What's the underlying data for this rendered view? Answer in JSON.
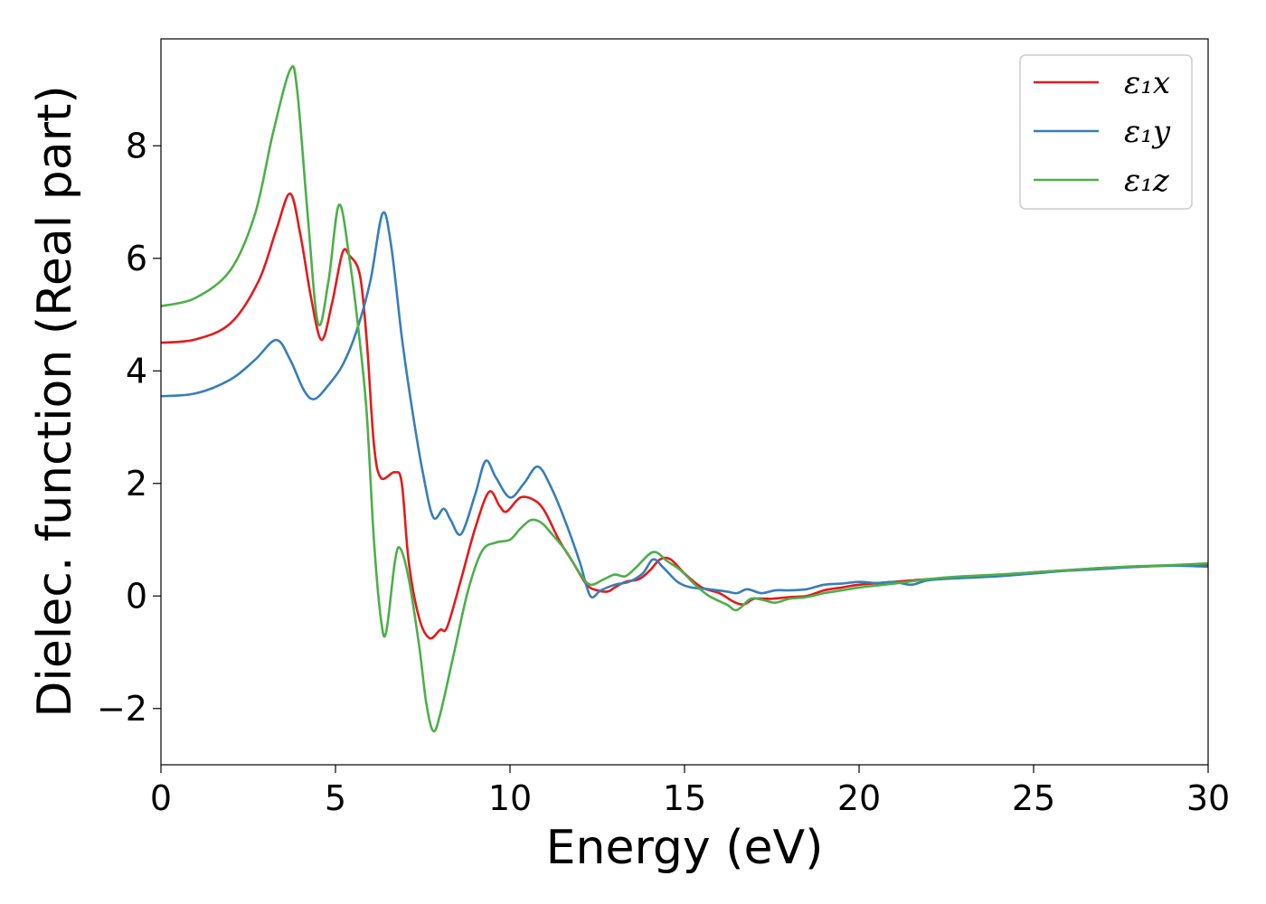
{
  "chart_data": {
    "type": "line",
    "title": "",
    "xlabel": "Energy (eV)",
    "ylabel": "Dielec. function (Real part)",
    "xlim": [
      0,
      30
    ],
    "ylim": [
      -3,
      9.9
    ],
    "xticks": [
      0,
      5,
      10,
      15,
      20,
      25,
      30
    ],
    "xtick_labels": [
      "0",
      "5",
      "10",
      "15",
      "20",
      "25",
      "30"
    ],
    "yticks": [
      -2,
      0,
      2,
      4,
      6,
      8
    ],
    "ytick_labels": [
      "−2",
      "0",
      "2",
      "4",
      "6",
      "8"
    ],
    "grid": false,
    "legend": "top-right",
    "series": [
      {
        "name": "ε₁x",
        "color": "#e41a1c",
        "points": [
          [
            0,
            4.5
          ],
          [
            1,
            4.56
          ],
          [
            2,
            4.85
          ],
          [
            2.8,
            5.6
          ],
          [
            3.3,
            6.5
          ],
          [
            3.7,
            7.15
          ],
          [
            4,
            6.4
          ],
          [
            4.3,
            5.3
          ],
          [
            4.6,
            4.55
          ],
          [
            4.9,
            5.2
          ],
          [
            5.2,
            6.1
          ],
          [
            5.4,
            6.05
          ],
          [
            5.7,
            5.7
          ],
          [
            5.9,
            4.5
          ],
          [
            6.1,
            2.7
          ],
          [
            6.3,
            2.1
          ],
          [
            6.7,
            2.2
          ],
          [
            6.9,
            2.0
          ],
          [
            7.1,
            0.6
          ],
          [
            7.4,
            -0.4
          ],
          [
            7.7,
            -0.75
          ],
          [
            8.0,
            -0.6
          ],
          [
            8.2,
            -0.55
          ],
          [
            8.6,
            0.3
          ],
          [
            9.0,
            1.2
          ],
          [
            9.4,
            1.85
          ],
          [
            9.7,
            1.6
          ],
          [
            9.9,
            1.5
          ],
          [
            10.3,
            1.75
          ],
          [
            10.7,
            1.7
          ],
          [
            11.0,
            1.5
          ],
          [
            11.4,
            1.0
          ],
          [
            11.8,
            0.6
          ],
          [
            12.2,
            0.2
          ],
          [
            12.5,
            0.1
          ],
          [
            12.8,
            0.08
          ],
          [
            13.0,
            0.15
          ],
          [
            13.3,
            0.25
          ],
          [
            13.7,
            0.3
          ],
          [
            14.0,
            0.45
          ],
          [
            14.3,
            0.65
          ],
          [
            14.6,
            0.65
          ],
          [
            15.0,
            0.4
          ],
          [
            15.5,
            0.15
          ],
          [
            16.0,
            0.05
          ],
          [
            16.4,
            -0.1
          ],
          [
            16.7,
            -0.15
          ],
          [
            17.0,
            -0.05
          ],
          [
            17.5,
            -0.05
          ],
          [
            18.0,
            -0.02
          ],
          [
            18.5,
            0.0
          ],
          [
            19.0,
            0.1
          ],
          [
            19.5,
            0.15
          ],
          [
            20.0,
            0.2
          ],
          [
            21.0,
            0.25
          ],
          [
            22.0,
            0.3
          ],
          [
            23.0,
            0.33
          ],
          [
            24.0,
            0.37
          ],
          [
            25.0,
            0.42
          ],
          [
            26.0,
            0.46
          ],
          [
            27.0,
            0.5
          ],
          [
            28.0,
            0.52
          ],
          [
            29.0,
            0.54
          ],
          [
            30.0,
            0.55
          ]
        ]
      },
      {
        "name": "ε₁y",
        "color": "#377eb8",
        "points": [
          [
            0,
            3.55
          ],
          [
            1,
            3.6
          ],
          [
            2,
            3.85
          ],
          [
            2.7,
            4.2
          ],
          [
            3.3,
            4.55
          ],
          [
            3.7,
            4.2
          ],
          [
            4.1,
            3.65
          ],
          [
            4.4,
            3.5
          ],
          [
            4.8,
            3.75
          ],
          [
            5.2,
            4.1
          ],
          [
            5.6,
            4.7
          ],
          [
            6.0,
            5.6
          ],
          [
            6.35,
            6.8
          ],
          [
            6.6,
            6.2
          ],
          [
            6.9,
            4.6
          ],
          [
            7.2,
            3.3
          ],
          [
            7.5,
            2.2
          ],
          [
            7.8,
            1.4
          ],
          [
            8.1,
            1.55
          ],
          [
            8.3,
            1.35
          ],
          [
            8.6,
            1.1
          ],
          [
            9.0,
            1.8
          ],
          [
            9.3,
            2.4
          ],
          [
            9.6,
            2.1
          ],
          [
            10.0,
            1.75
          ],
          [
            10.4,
            2.0
          ],
          [
            10.8,
            2.3
          ],
          [
            11.2,
            1.9
          ],
          [
            11.6,
            1.3
          ],
          [
            12.0,
            0.6
          ],
          [
            12.3,
            0.0
          ],
          [
            12.6,
            0.1
          ],
          [
            13.0,
            0.2
          ],
          [
            13.4,
            0.25
          ],
          [
            13.8,
            0.4
          ],
          [
            14.1,
            0.65
          ],
          [
            14.4,
            0.5
          ],
          [
            14.8,
            0.25
          ],
          [
            15.2,
            0.15
          ],
          [
            15.7,
            0.12
          ],
          [
            16.2,
            0.08
          ],
          [
            16.5,
            0.05
          ],
          [
            16.8,
            0.12
          ],
          [
            17.2,
            0.05
          ],
          [
            17.6,
            0.1
          ],
          [
            18.0,
            0.1
          ],
          [
            18.5,
            0.12
          ],
          [
            19.0,
            0.2
          ],
          [
            19.5,
            0.22
          ],
          [
            20.0,
            0.25
          ],
          [
            20.5,
            0.23
          ],
          [
            21.0,
            0.25
          ],
          [
            21.5,
            0.2
          ],
          [
            22.0,
            0.28
          ],
          [
            23.0,
            0.32
          ],
          [
            24.0,
            0.35
          ],
          [
            25.0,
            0.4
          ],
          [
            26.0,
            0.45
          ],
          [
            27.0,
            0.48
          ],
          [
            28.0,
            0.52
          ],
          [
            29.0,
            0.54
          ],
          [
            30.0,
            0.52
          ]
        ]
      },
      {
        "name": "ε₁z",
        "color": "#4daf4a",
        "points": [
          [
            0,
            5.15
          ],
          [
            1,
            5.3
          ],
          [
            2,
            5.8
          ],
          [
            2.7,
            6.8
          ],
          [
            3.2,
            8.2
          ],
          [
            3.7,
            9.35
          ],
          [
            3.9,
            9.0
          ],
          [
            4.2,
            6.8
          ],
          [
            4.5,
            4.85
          ],
          [
            4.8,
            5.6
          ],
          [
            5.1,
            6.95
          ],
          [
            5.4,
            6.0
          ],
          [
            5.7,
            4.5
          ],
          [
            5.9,
            3.2
          ],
          [
            6.1,
            1.0
          ],
          [
            6.3,
            -0.4
          ],
          [
            6.45,
            -0.65
          ],
          [
            6.7,
            0.6
          ],
          [
            6.85,
            0.85
          ],
          [
            7.1,
            0.3
          ],
          [
            7.4,
            -0.9
          ],
          [
            7.6,
            -1.9
          ],
          [
            7.8,
            -2.4
          ],
          [
            8.0,
            -2.1
          ],
          [
            8.4,
            -1.0
          ],
          [
            8.8,
            0.1
          ],
          [
            9.2,
            0.8
          ],
          [
            9.6,
            0.95
          ],
          [
            10.0,
            1.0
          ],
          [
            10.3,
            1.2
          ],
          [
            10.6,
            1.35
          ],
          [
            10.9,
            1.3
          ],
          [
            11.2,
            1.1
          ],
          [
            11.6,
            0.8
          ],
          [
            12.0,
            0.4
          ],
          [
            12.3,
            0.2
          ],
          [
            12.7,
            0.3
          ],
          [
            13.0,
            0.38
          ],
          [
            13.3,
            0.35
          ],
          [
            13.6,
            0.5
          ],
          [
            14.1,
            0.78
          ],
          [
            14.5,
            0.62
          ],
          [
            14.9,
            0.45
          ],
          [
            15.3,
            0.2
          ],
          [
            15.7,
            0.0
          ],
          [
            16.2,
            -0.15
          ],
          [
            16.5,
            -0.25
          ],
          [
            16.9,
            -0.05
          ],
          [
            17.3,
            -0.08
          ],
          [
            17.6,
            -0.12
          ],
          [
            18.0,
            -0.05
          ],
          [
            18.5,
            -0.02
          ],
          [
            19.0,
            0.05
          ],
          [
            19.5,
            0.1
          ],
          [
            20.0,
            0.15
          ],
          [
            21.0,
            0.22
          ],
          [
            22.0,
            0.3
          ],
          [
            23.0,
            0.35
          ],
          [
            24.0,
            0.38
          ],
          [
            25.0,
            0.42
          ],
          [
            26.0,
            0.46
          ],
          [
            27.0,
            0.5
          ],
          [
            28.0,
            0.53
          ],
          [
            29.0,
            0.55
          ],
          [
            30.0,
            0.58
          ]
        ]
      }
    ]
  }
}
